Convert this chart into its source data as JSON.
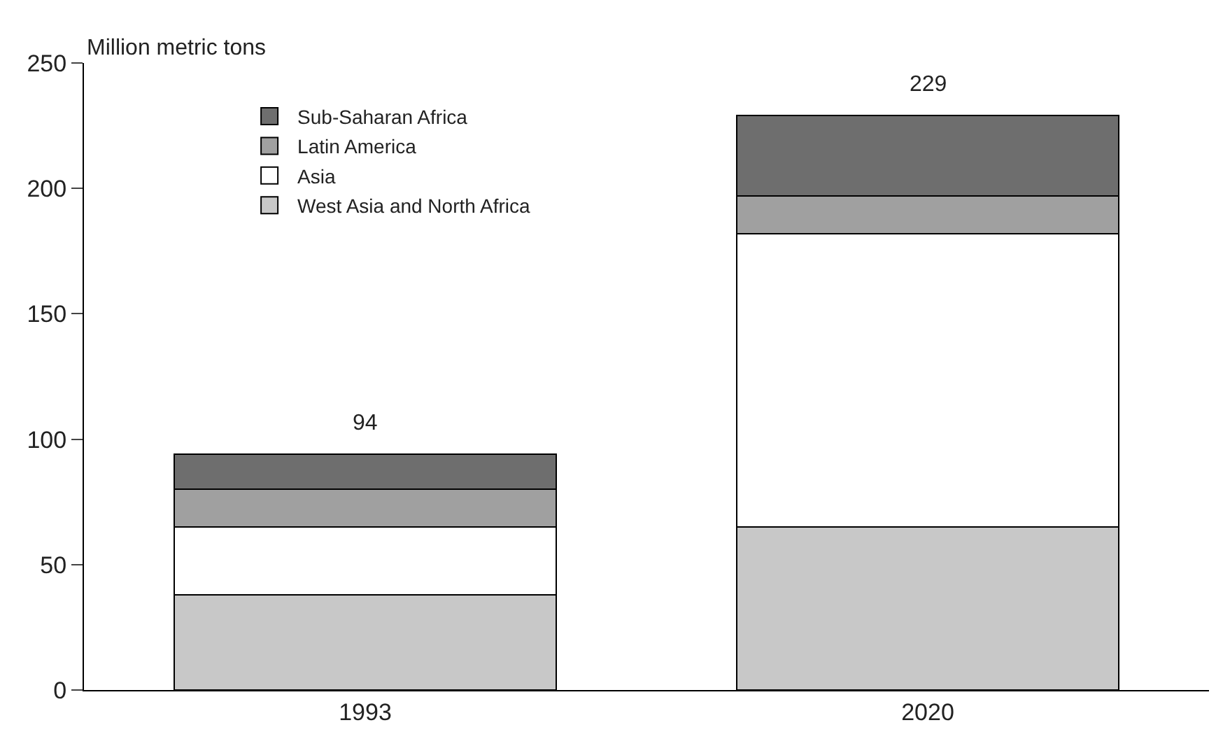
{
  "chart_data": {
    "type": "bar",
    "stacked": true,
    "ylabel": "Million metric tons",
    "categories": [
      "1993",
      "2020"
    ],
    "series": [
      {
        "name": "West Asia and North Africa",
        "color": "#c8c8c8",
        "values": [
          38,
          65
        ]
      },
      {
        "name": "Asia",
        "color": "#ffffff",
        "values": [
          27,
          117
        ]
      },
      {
        "name": "Latin America",
        "color": "#a0a0a0",
        "values": [
          15,
          15
        ]
      },
      {
        "name": "Sub-Saharan Africa",
        "color": "#6e6e6e",
        "values": [
          14,
          32
        ]
      }
    ],
    "totals": [
      "94",
      "229"
    ],
    "ylim": [
      0,
      250
    ],
    "yticks": [
      0,
      50,
      100,
      150,
      200,
      250
    ],
    "legend": "top left"
  }
}
